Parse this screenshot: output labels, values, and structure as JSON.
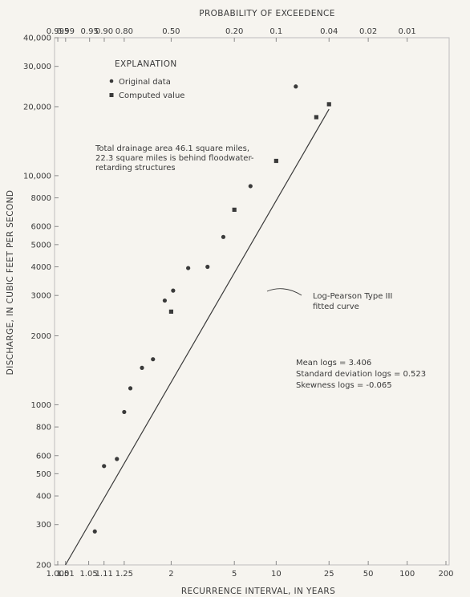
{
  "chart_data": {
    "type": "scatter",
    "top_axis_title": "PROBABILITY OF EXCEEDENCE",
    "xlabel": "RECURRENCE INTERVAL, IN YEARS",
    "ylabel": "DISCHARGE, IN CUBIC FEET PER SECOND",
    "x_scale": "probability (Gumbel)",
    "y_scale": "log",
    "ylim": [
      200,
      40000
    ],
    "xlim": [
      1.005,
      200
    ],
    "x_tick_labels": [
      "1.005",
      "1.01",
      "1.05",
      "1.11",
      "1.25",
      "2",
      "5",
      "10",
      "25",
      "50",
      "100",
      "200"
    ],
    "top_tick_labels": [
      "0.995",
      "0.99",
      "0.95",
      "0.90",
      "0.80",
      "0.50",
      "0.20",
      "0.1",
      "0.04",
      "0.02",
      "0.01"
    ],
    "y_tick_labels": [
      "200",
      "300",
      "400",
      "500",
      "600",
      "800",
      "1000",
      "2000",
      "3000",
      "4000",
      "5000",
      "6000",
      "8000",
      "10,000",
      "20,000",
      "30,000",
      "40,000"
    ],
    "legend": {
      "title": "EXPLANATION",
      "items": [
        "Original data",
        "Computed value"
      ]
    },
    "series": [
      {
        "name": "Original data",
        "marker": "dot",
        "points": [
          {
            "x": 1.07,
            "y": 280
          },
          {
            "x": 1.11,
            "y": 540
          },
          {
            "x": 1.19,
            "y": 580
          },
          {
            "x": 1.25,
            "y": 930
          },
          {
            "x": 1.31,
            "y": 1180
          },
          {
            "x": 1.45,
            "y": 1450
          },
          {
            "x": 1.62,
            "y": 1580
          },
          {
            "x": 1.85,
            "y": 2850
          },
          {
            "x": 2.05,
            "y": 3150
          },
          {
            "x": 2.5,
            "y": 3950
          },
          {
            "x": 3.3,
            "y": 4000
          },
          {
            "x": 4.2,
            "y": 5400
          },
          {
            "x": 6.5,
            "y": 9000
          },
          {
            "x": 14,
            "y": 24500
          }
        ]
      },
      {
        "name": "Computed value",
        "marker": "square",
        "points": [
          {
            "x": 2,
            "y": 2550
          },
          {
            "x": 5,
            "y": 7100
          },
          {
            "x": 10,
            "y": 11600
          },
          {
            "x": 20,
            "y": 18000
          },
          {
            "x": 25,
            "y": 20500
          }
        ]
      }
    ],
    "fitted_curve": {
      "label": "Log-Pearson Type III fitted curve",
      "label_line1": "Log-Pearson Type III",
      "label_line2": "fitted curve",
      "points": [
        {
          "x": 1.01,
          "y": 200
        },
        {
          "x": 25,
          "y": 19500
        }
      ]
    },
    "annotations": {
      "drainage_line1": "Total drainage area 46.1 square miles,",
      "drainage_line2": "22.3 square miles is behind floodwater-",
      "drainage_line3": "retarding structures",
      "stats_line1": "Mean logs = 3.406",
      "stats_line2": "Standard deviation logs = 0.523",
      "stats_line3": "Skewness logs = -0.065"
    },
    "grid": false,
    "colors": {
      "ink": "#3a3a3a",
      "background": "#f6f4ef",
      "frame": "#bdbdbd"
    }
  }
}
